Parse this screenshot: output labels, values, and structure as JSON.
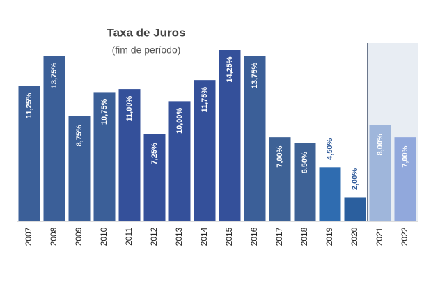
{
  "chart_data": {
    "type": "bar",
    "title": "Taxa de Juros",
    "subtitle": "(fim de período)",
    "categories": [
      "2007",
      "2008",
      "2009",
      "2010",
      "2011",
      "2012",
      "2013",
      "2014",
      "2015",
      "2016",
      "2017",
      "2018",
      "2019",
      "2020",
      "2021",
      "2022"
    ],
    "values": [
      11.25,
      13.75,
      8.75,
      10.75,
      11.0,
      7.25,
      10.0,
      11.75,
      14.25,
      13.75,
      7.0,
      6.5,
      4.5,
      2.0,
      8.0,
      7.0
    ],
    "value_labels": [
      "11,25%",
      "13,75%",
      "8,75%",
      "10,75%",
      "11,00%",
      "7,25%",
      "10,00%",
      "11,75%",
      "14,25%",
      "13,75%",
      "7,00%",
      "6,50%",
      "4,50%",
      "2,00%",
      "8,00%",
      "7,00%"
    ],
    "colors": [
      "#3b5f98",
      "#3b5f98",
      "#3b5f98",
      "#3b5f98",
      "#34509a",
      "#34509a",
      "#34509a",
      "#34509a",
      "#34509a",
      "#3b5f98",
      "#3e6296",
      "#3e6296",
      "#2f6cb0",
      "#2b5f9e",
      "#9fb6db",
      "#91a8dc"
    ]
  }
}
